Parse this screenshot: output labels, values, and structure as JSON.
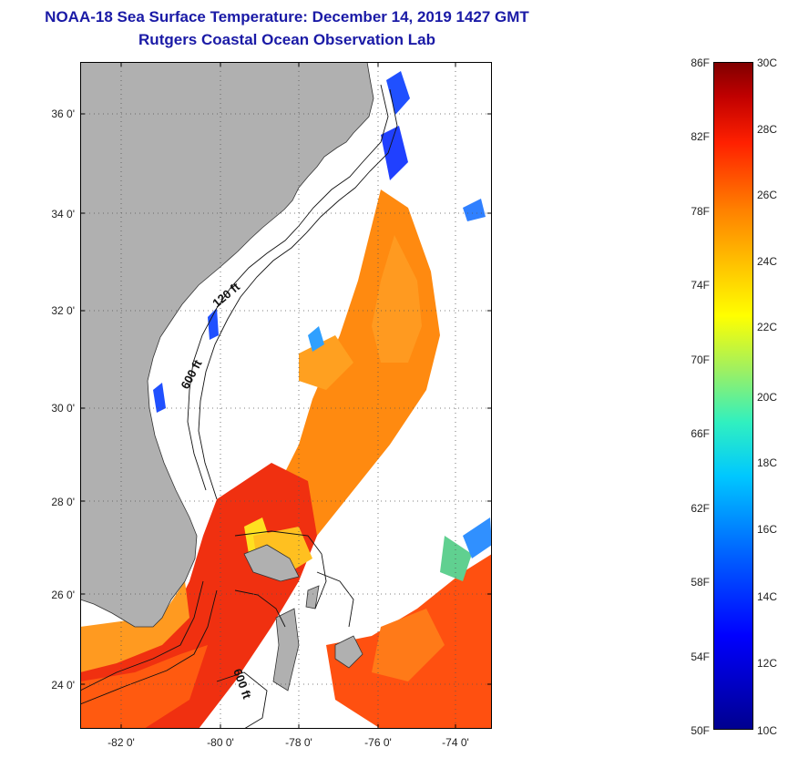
{
  "title": {
    "line1": "NOAA-18 Sea Surface Temperature:  December 14, 2019 1427 GMT",
    "line2": "Rutgers Coastal Ocean Observation Lab"
  },
  "map": {
    "lat_labels": [
      "36 0'",
      "34 0'",
      "32 0'",
      "30 0'",
      "28 0'",
      "26 0'",
      "24 0'"
    ],
    "lon_labels": [
      "-82 0'",
      "-80 0'",
      "-78 0'",
      "-76 0'",
      "-74 0'"
    ],
    "contours": {
      "c120": "120 ft",
      "c600a": "600 ft",
      "c600b": "600 ft"
    },
    "colors": {
      "land": "#b0b0b0",
      "nodata": "#ffffff",
      "grid": "#555555"
    }
  },
  "colorbar": {
    "fahrenheit": [
      "86F",
      "82F",
      "78F",
      "74F",
      "70F",
      "66F",
      "62F",
      "58F",
      "54F",
      "50F"
    ],
    "celsius": [
      "30C",
      "28C",
      "26C",
      "24C",
      "22C",
      "20C",
      "18C",
      "16C",
      "14C",
      "12C",
      "10C"
    ]
  }
}
